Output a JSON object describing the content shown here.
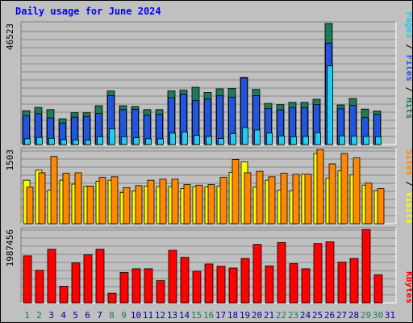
{
  "title": "Daily usage for June 2024",
  "colors": {
    "background": "#c0c0c0",
    "hits": "#1f7a5a",
    "files": "#2255dd",
    "pages": "#22ccee",
    "visits": "#ffff00",
    "sites": "#ff8800",
    "kbytes": "#ff0000",
    "day_label": "#0000a0",
    "weekend_label": "#1f7a5a"
  },
  "chart_data": [
    {
      "type": "bar",
      "panel": "hits-files-pages",
      "ymax_label": "46523",
      "ylim": [
        0,
        46523
      ],
      "categories": [
        "1",
        "2",
        "3",
        "4",
        "5",
        "6",
        "7",
        "8",
        "9",
        "10",
        "11",
        "12",
        "13",
        "14",
        "15",
        "16",
        "17",
        "18",
        "19",
        "20",
        "21",
        "22",
        "23",
        "24",
        "25",
        "26",
        "27",
        "28",
        "29",
        "30",
        "31"
      ],
      "weekend_days": [
        "1",
        "2",
        "8",
        "9",
        "15",
        "16",
        "22",
        "23",
        "29",
        "30"
      ],
      "side_label": {
        "pages": "Pages",
        "sep1": " / ",
        "files": "Files",
        "sep2": " / ",
        "hits": "Hits"
      },
      "series": [
        {
          "name": "Hits",
          "values": [
            13000,
            14300,
            13400,
            9900,
            12200,
            12200,
            14900,
            20600,
            14900,
            14600,
            13400,
            13400,
            20600,
            20900,
            22000,
            20000,
            21400,
            21600,
            25800,
            21200,
            15800,
            15300,
            16200,
            16200,
            17400,
            46500,
            15200,
            17700,
            13600,
            12900,
            0
          ]
        },
        {
          "name": "Files",
          "values": [
            11000,
            11800,
            10200,
            8300,
            10500,
            10700,
            11900,
            18800,
            13400,
            13500,
            11300,
            11600,
            18000,
            19300,
            16900,
            17500,
            18700,
            18200,
            25500,
            18800,
            13800,
            13300,
            14200,
            14200,
            15300,
            39000,
            13700,
            15000,
            10300,
            11600,
            0
          ]
        },
        {
          "name": "Pages",
          "values": [
            2200,
            2700,
            2400,
            1900,
            1800,
            1700,
            3000,
            6000,
            3000,
            2600,
            2200,
            2200,
            4400,
            4800,
            3500,
            3100,
            2300,
            4200,
            6500,
            5600,
            4400,
            3300,
            3000,
            3100,
            4500,
            30200,
            3300,
            3200,
            3100,
            3000,
            0
          ]
        }
      ]
    },
    {
      "type": "bar",
      "panel": "visits-sites",
      "ymax_label": "1503",
      "ylim": [
        0,
        1503
      ],
      "side_label": {
        "sites": "Sites",
        "sep": " / ",
        "visits": "Visits"
      },
      "series": [
        {
          "name": "Visits",
          "values": [
            880,
            1080,
            680,
            880,
            800,
            760,
            860,
            880,
            630,
            660,
            760,
            750,
            750,
            710,
            750,
            740,
            760,
            1040,
            1250,
            740,
            880,
            680,
            670,
            1000,
            1420,
            920,
            1070,
            990,
            780,
            670,
            0
          ]
        },
        {
          "name": "Sites",
          "values": [
            740,
            1030,
            1360,
            1020,
            1030,
            760,
            940,
            950,
            730,
            770,
            880,
            900,
            900,
            790,
            780,
            790,
            940,
            1300,
            1030,
            1060,
            950,
            1020,
            1000,
            1000,
            1500,
            1210,
            1420,
            1330,
            820,
            710,
            0
          ]
        }
      ]
    },
    {
      "type": "bar",
      "panel": "kbytes",
      "ymax_label": "1987456",
      "ylim": [
        0,
        1987456
      ],
      "side_label": {
        "kbytes": "KBytes"
      },
      "series": [
        {
          "name": "KBytes",
          "values": [
            1270000,
            880000,
            1450000,
            450000,
            1080000,
            1300000,
            1450000,
            260000,
            820000,
            920000,
            920000,
            600000,
            1420000,
            1230000,
            850000,
            1050000,
            990000,
            940000,
            1200000,
            1580000,
            1000000,
            1630000,
            1060000,
            920000,
            1600000,
            1650000,
            1100000,
            1200000,
            1980000,
            760000,
            0
          ]
        }
      ]
    }
  ]
}
